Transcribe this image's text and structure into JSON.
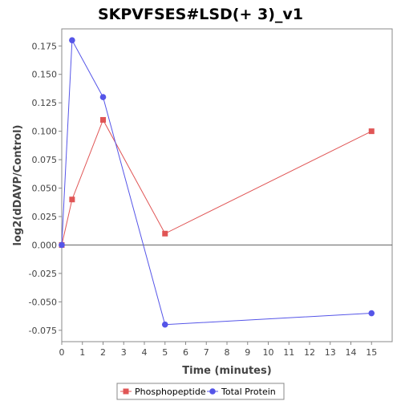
{
  "chart_data": {
    "type": "line",
    "title": "SKPVFSES#LSD(+ 3)_v1",
    "xlabel": "Time (minutes)",
    "ylabel": "log2(dDAVP/Control)",
    "xlim": [
      0,
      16
    ],
    "ylim": [
      -0.085,
      0.19
    ],
    "x_ticks": [
      0,
      1,
      2,
      3,
      4,
      5,
      6,
      7,
      8,
      9,
      10,
      11,
      12,
      13,
      14,
      15
    ],
    "y_ticks": [
      -0.075,
      -0.05,
      -0.025,
      0.0,
      0.025,
      0.05,
      0.075,
      0.1,
      0.125,
      0.15,
      0.175
    ],
    "y_tick_labels": [
      "-0.075",
      "-0.050",
      "-0.025",
      "0.000",
      "0.025",
      "0.050",
      "0.075",
      "0.100",
      "0.125",
      "0.150",
      "0.175"
    ],
    "zero_line": true,
    "grid": false,
    "legend_position": "bottom",
    "series": [
      {
        "name": "Phosphopeptide",
        "marker": "square",
        "color": "#e05555",
        "x": [
          0,
          0.5,
          2,
          5,
          15
        ],
        "y": [
          0.0,
          0.04,
          0.11,
          0.01,
          0.1
        ]
      },
      {
        "name": "Total Protein",
        "marker": "circle",
        "color": "#5555e8",
        "x": [
          0,
          0.5,
          2,
          5,
          15
        ],
        "y": [
          0.0,
          0.18,
          0.13,
          -0.07,
          -0.06
        ]
      }
    ]
  }
}
